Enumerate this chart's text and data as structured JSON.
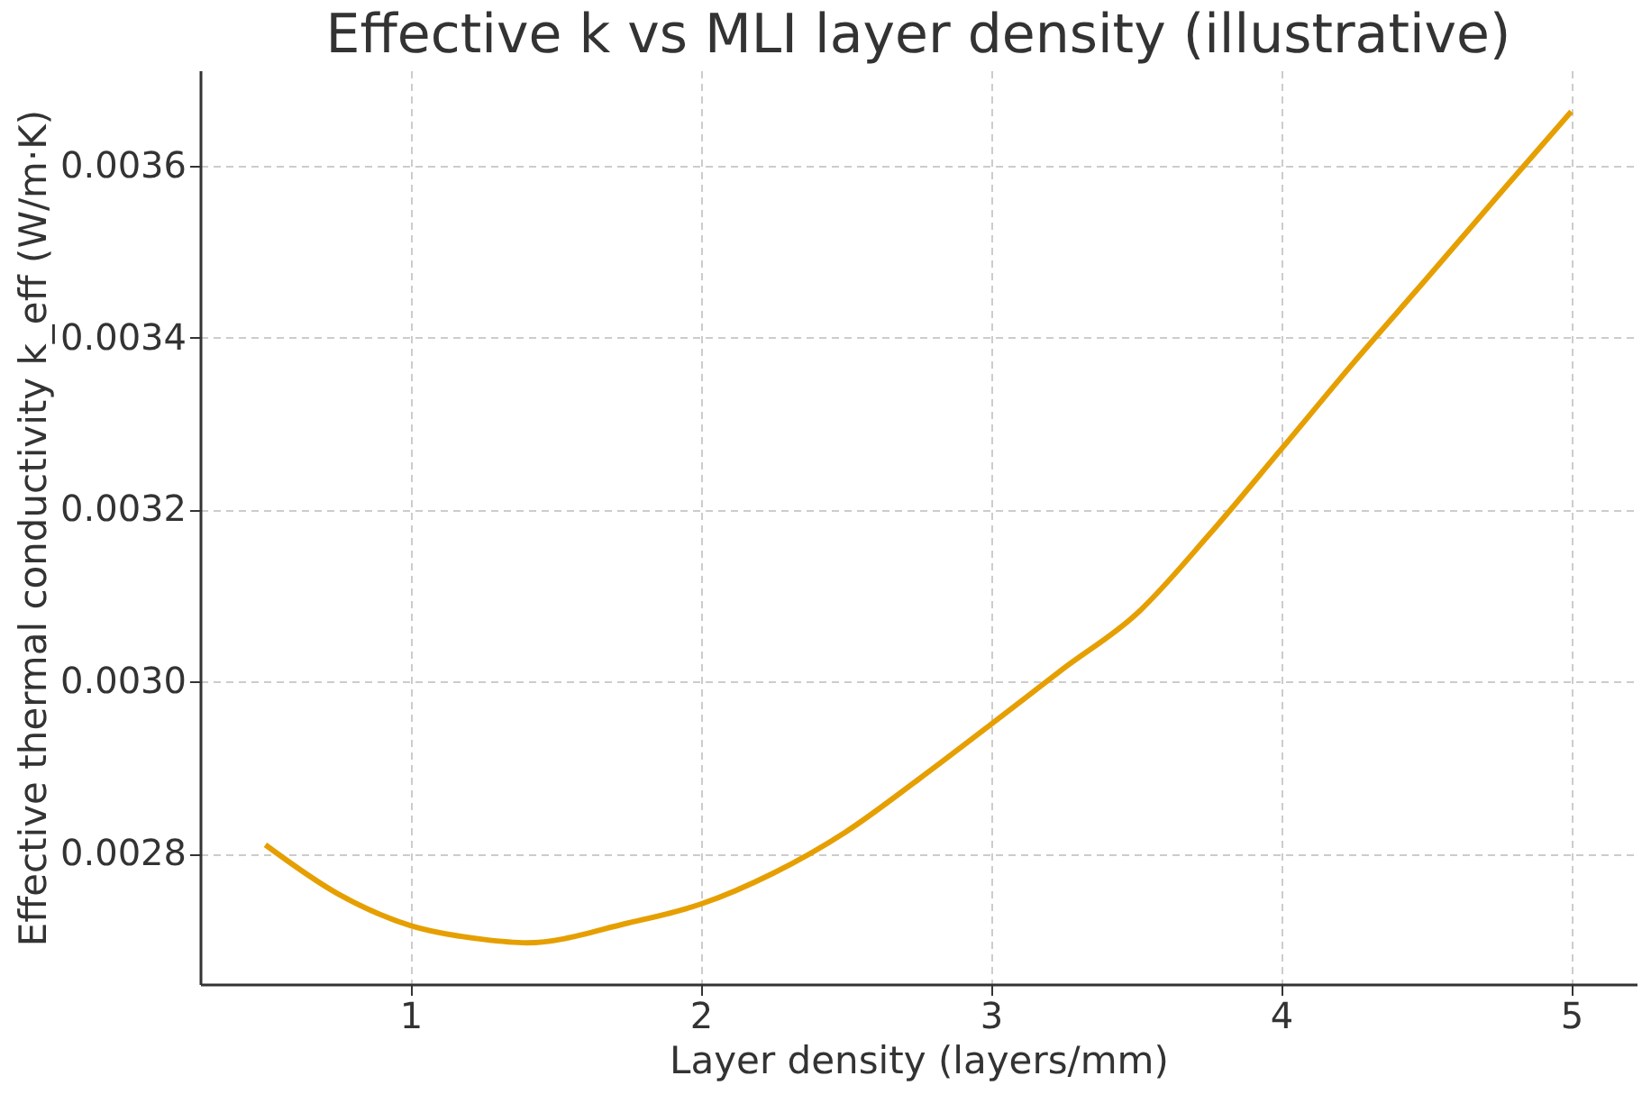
{
  "chart_data": {
    "type": "line",
    "title": "Effective k vs MLI layer density (illustrative)",
    "xlabel": "Layer density (layers/mm)",
    "ylabel": "Effective thermal conductivity k_eff (W/m·K)",
    "x": [
      0.5,
      0.75,
      1,
      1.25,
      1.4,
      1.75,
      2,
      2.25,
      2.5,
      2.75,
      3,
      3.25,
      3.5,
      3.75,
      4,
      4.25,
      4.5,
      4.75,
      5
    ],
    "series": [
      {
        "color": "#e69f00",
        "values": [
          0.00281,
          0.002753,
          0.002716,
          0.0027,
          0.002696,
          0.002719,
          0.002741,
          0.002777,
          0.002825,
          0.002886,
          0.00295,
          0.003015,
          0.003078,
          0.00317,
          0.00327,
          0.003371,
          0.003468,
          0.003566,
          0.003663
        ]
      }
    ],
    "xlim": [
      0.275,
      5.225
    ],
    "ylim": [
      0.002648,
      0.003711
    ],
    "xticks": [
      1,
      2,
      3,
      4,
      5
    ],
    "yticks": [
      0.0028,
      {
        "value": 0.003,
        "label": "0.0030"
      },
      0.0032,
      0.0034,
      0.0036
    ],
    "grid": true,
    "line_style": "solid",
    "marker": "none"
  }
}
